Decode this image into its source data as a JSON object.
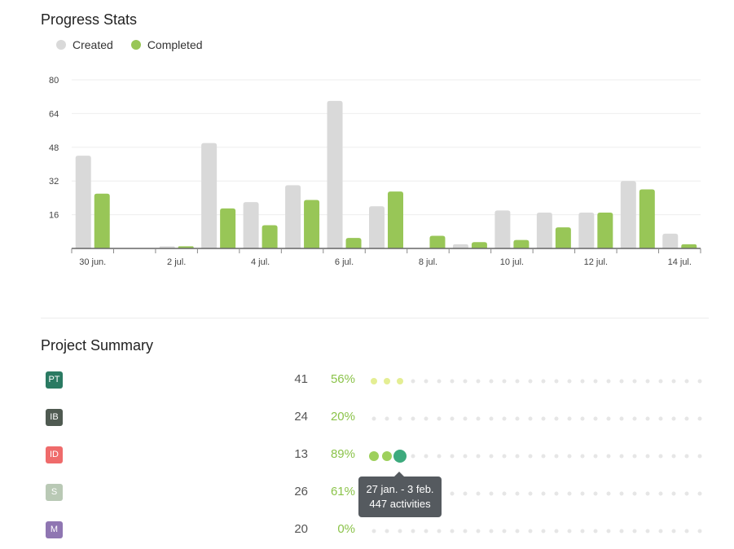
{
  "stats": {
    "title": "Progress Stats",
    "legend": [
      {
        "label": "Created",
        "color": "#d9d9d9"
      },
      {
        "label": "Completed",
        "color": "#98c657"
      }
    ]
  },
  "chart_data": {
    "type": "bar",
    "title": "Progress Stats",
    "xlabel": "",
    "ylabel": "",
    "ylim": [
      0,
      80
    ],
    "yticks": [
      "80",
      "64",
      "48",
      "32",
      "16"
    ],
    "categories": [
      "30 jun.",
      "1 jul.",
      "2 jul.",
      "3 jul.",
      "4 jul.",
      "5 jul.",
      "6 jul.",
      "7 jul.",
      "8 jul.",
      "9 jul.",
      "10 jul.",
      "11 jul.",
      "12 jul.",
      "13 jul.",
      "14 jul."
    ],
    "xtick_labels": [
      "30 jun.",
      "2 jul.",
      "4 jul.",
      "6 jul.",
      "8 jul.",
      "10 jul.",
      "12 jul.",
      "14 jul."
    ],
    "series": [
      {
        "name": "Created",
        "color": "#d9d9d9",
        "values": [
          44,
          0,
          1,
          50,
          22,
          30,
          70,
          20,
          0,
          2,
          18,
          17,
          17,
          32,
          7
        ]
      },
      {
        "name": "Completed",
        "color": "#98c657",
        "values": [
          26,
          0,
          1,
          19,
          11,
          23,
          5,
          27,
          6,
          3,
          4,
          10,
          17,
          28,
          2
        ]
      }
    ],
    "grid": true,
    "legend_position": "top-left"
  },
  "summary": {
    "title": "Project Summary",
    "rows": [
      {
        "initials": "PT",
        "badge_color": "#2a7a62",
        "count": "41",
        "pct": "56%",
        "active_dots": 3,
        "dot_color": "#e4ee93",
        "highlight": false
      },
      {
        "initials": "IB",
        "badge_color": "#4f5a51",
        "count": "24",
        "pct": "20%",
        "active_dots": 0,
        "dot_color": "#e4ee93",
        "highlight": false
      },
      {
        "initials": "ID",
        "badge_color": "#ef6b6b",
        "count": "13",
        "pct": "89%",
        "active_dots": 3,
        "dot_color": "#9ed05c",
        "highlight": true
      },
      {
        "initials": "S",
        "badge_color": "#b9c9b5",
        "count": "26",
        "pct": "61%",
        "active_dots": 0,
        "dot_color": "#e4ee93",
        "highlight": false
      },
      {
        "initials": "M",
        "badge_color": "#8f76b2",
        "count": "20",
        "pct": "0%",
        "active_dots": 0,
        "dot_color": "#e4ee93",
        "highlight": false
      }
    ],
    "total_dots": 26
  },
  "tooltip": {
    "range": "27 jan. - 3 feb.",
    "activities": "447 activities"
  }
}
